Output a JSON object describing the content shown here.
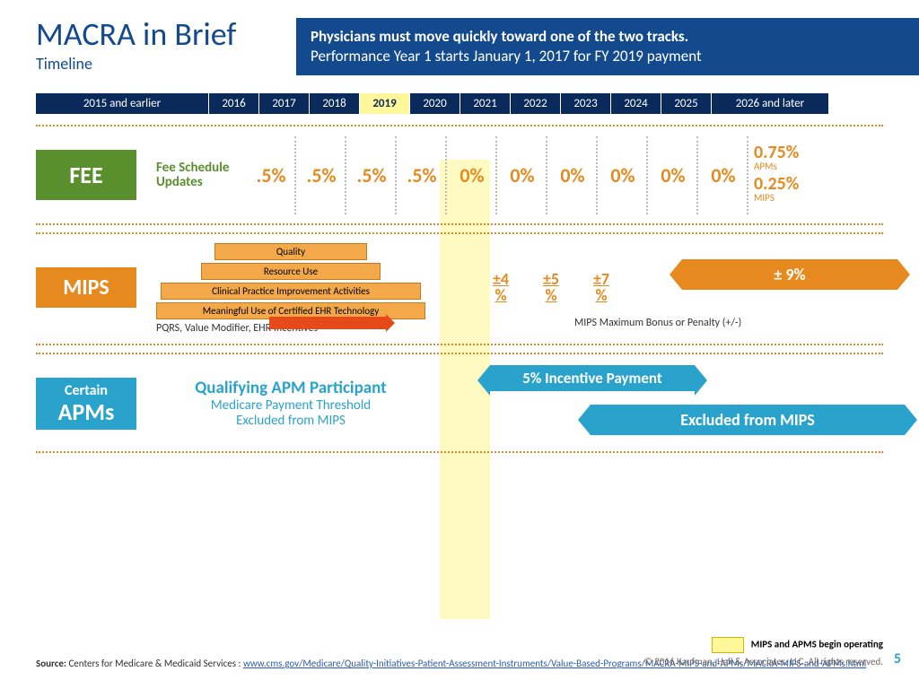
{
  "title": "MACRA in Brief",
  "subtitle": "Timeline",
  "banner": {
    "l1": "Physicians must move quickly toward one of the two tracks.",
    "l2": "Performance Year 1 starts January 1, 2017  for FY 2019 payment"
  },
  "timeline": {
    "first": "2015 and earlier",
    "years": [
      "2016",
      "2017",
      "2018",
      "2019",
      "2020",
      "2021",
      "2022",
      "2023",
      "2024",
      "2025"
    ],
    "highlight_index": 3,
    "last": "2026 and later"
  },
  "fee": {
    "badge": "FEE",
    "label": "Fee Schedule Updates",
    "values": [
      ".5%",
      ".5%",
      ".5%",
      ".5%",
      "0%",
      "0%",
      "0%",
      "0%",
      "0%",
      "0%"
    ],
    "end": {
      "apm_pct": "0.75%",
      "apm_lbl": "APMs",
      "mips_pct": "0.25%",
      "mips_lbl": "MIPS"
    }
  },
  "mips": {
    "badge": "MIPS",
    "bars": [
      "Quality",
      "Resource Use",
      "Clinical Practice Improvement Activities",
      "Meaningful Use of Certified EHR Technology"
    ],
    "foot": "PQRS, Value Modifier, EHR Incentives",
    "vals": [
      "±4 %",
      "±5 %",
      "±7 %"
    ],
    "ribbon": "± 9%",
    "note": "MIPS Maximum Bonus or Penalty (+/-)"
  },
  "apm": {
    "badge_top": "Certain",
    "badge": "APMs",
    "title": "Qualifying APM Participant",
    "sub1": "Medicare Payment Threshold",
    "sub2": "Excluded from MIPS",
    "r1": "5% Incentive Payment",
    "r2": "Excluded from MIPS"
  },
  "legend": "MIPS and APMS begin operating",
  "source_label": "Source: ",
  "source_text": "Centers for Medicare & Medicaid Services : ",
  "source_link": "www.cms.gov/Medicare/Quality-Initiatives-Patient-Assessment-Instruments/Value-Based-Programs/MACRA-MIPS-and-APMs/MACRA-MIPS-and-APMs.html",
  "copyright": "© 2016 Kaufman, Hall & Associates, LLC. All rights reserved.",
  "page": "5",
  "colors": {
    "navy": "#134a8e",
    "darknavy": "#0b2a5c",
    "orange": "#e68a1f",
    "green": "#5a8f2e",
    "cyan": "#2aa3cc",
    "highlight": "#fff799"
  }
}
